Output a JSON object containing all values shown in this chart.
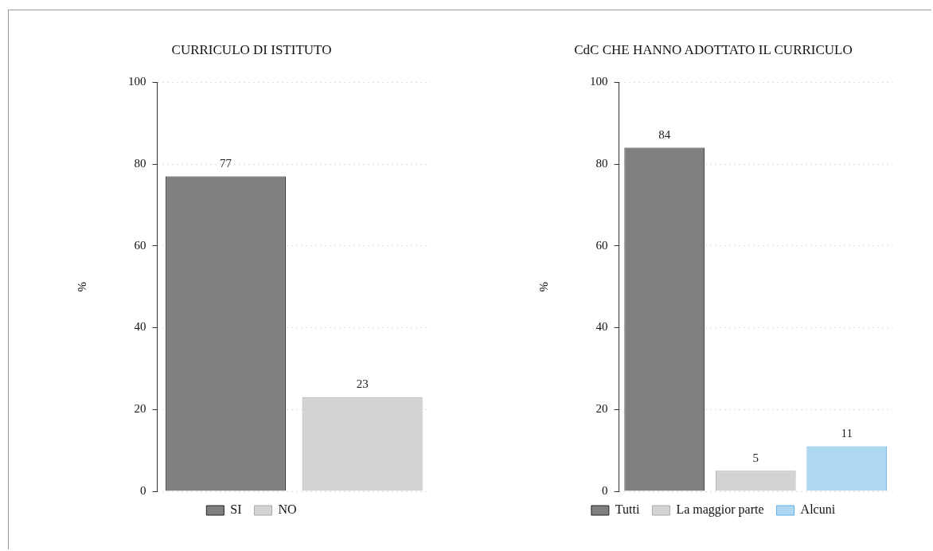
{
  "chart_data": [
    {
      "type": "bar",
      "title": "CURRICULO DI ISTITUTO",
      "ylabel": "%",
      "categories": [
        null,
        null
      ],
      "series": [
        {
          "name": "SI",
          "color": "#808080",
          "values": [
            77,
            null
          ]
        },
        {
          "name": "NO",
          "color": "#d3d3d3",
          "values": [
            null,
            23
          ]
        }
      ],
      "ylim": [
        0,
        100
      ],
      "yticks": [
        0,
        20,
        40,
        60,
        80,
        100
      ],
      "grid": "y",
      "legend": "bottom",
      "data_labels": true
    },
    {
      "type": "bar",
      "title": "CdC CHE HANNO ADOTTATO IL CURRICULO",
      "ylabel": "%",
      "categories": [
        null,
        null,
        null
      ],
      "series": [
        {
          "name": "Tutti",
          "color": "#808080",
          "values": [
            84,
            null,
            null
          ]
        },
        {
          "name": "La maggior parte",
          "color": "#d3d3d3",
          "values": [
            null,
            5,
            null
          ]
        },
        {
          "name": "Alcuni",
          "color": "#aed8f2",
          "values": [
            null,
            null,
            11
          ]
        }
      ],
      "ylim": [
        0,
        100
      ],
      "yticks": [
        0,
        20,
        40,
        60,
        80,
        100
      ],
      "grid": "y",
      "legend": "bottom",
      "data_labels": true
    }
  ]
}
